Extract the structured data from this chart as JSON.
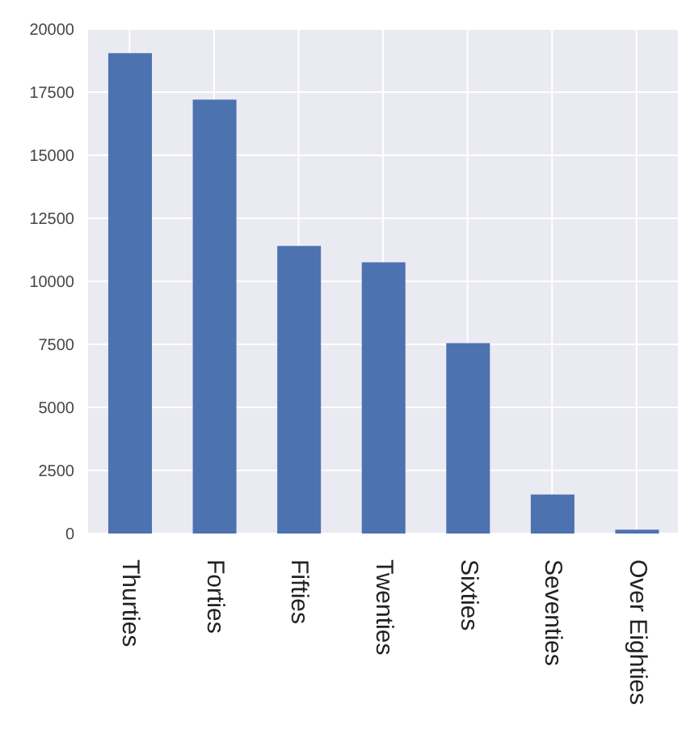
{
  "chart_data": {
    "type": "bar",
    "categories": [
      "Thurties",
      "Forties",
      "Fifties",
      "Twenties",
      "Sixties",
      "Seventies",
      "Over Eighties"
    ],
    "values": [
      19050,
      17200,
      11400,
      10750,
      7550,
      1550,
      150
    ],
    "color": "#4c72b0",
    "ylim": [
      0,
      20000
    ],
    "yticks": [
      0,
      2500,
      5000,
      7500,
      10000,
      12500,
      15000,
      17500,
      20000
    ],
    "grid": true
  }
}
